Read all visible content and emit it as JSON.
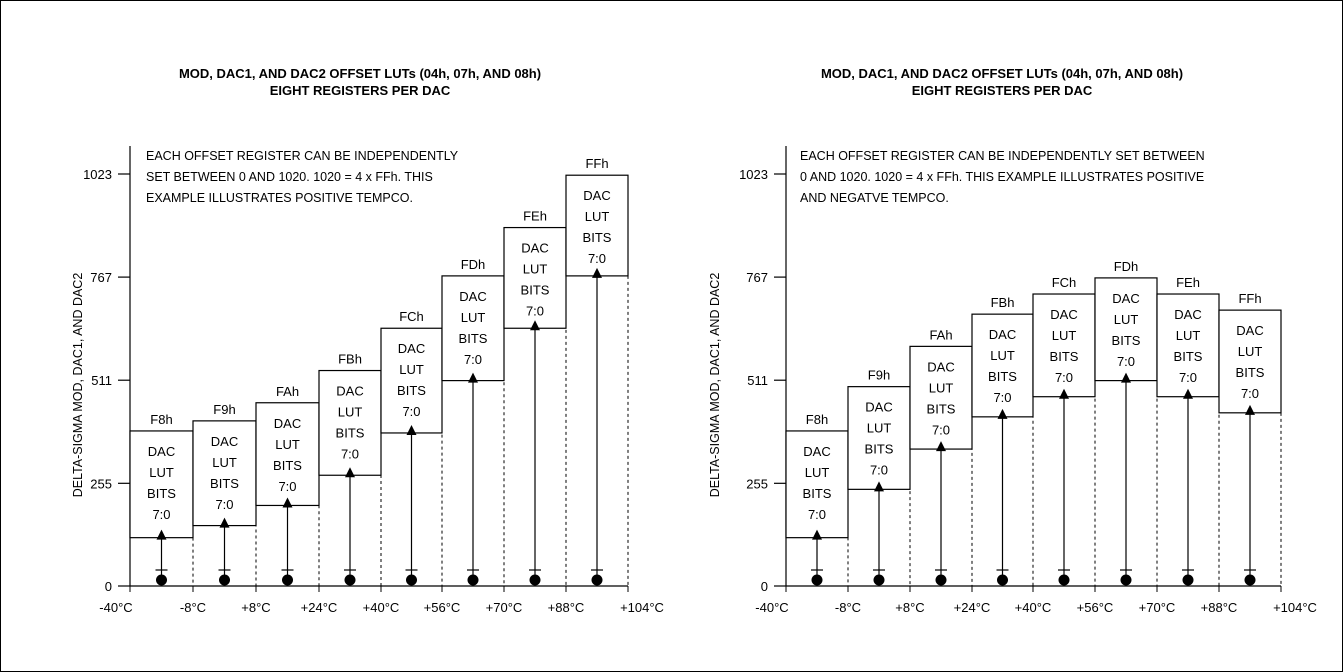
{
  "charts": [
    {
      "title_line1": "MOD, DAC1, AND DAC2 OFFSET LUTs (04h, 07h, AND 08h)",
      "title_line2": "EIGHT REGISTERS PER DAC",
      "note_lines": [
        "EACH OFFSET REGISTER CAN BE INDEPENDENTLY",
        "SET BETWEEN 0 AND 1020. 1020 = 4 x FFh. THIS",
        "EXAMPLE ILLUSTRATES POSITIVE TEMPCO."
      ]
    },
    {
      "title_line1": "MOD, DAC1, AND DAC2 OFFSET LUTs (04h, 07h, AND 08h)",
      "title_line2": "EIGHT REGISTERS PER DAC",
      "note_lines": [
        "EACH OFFSET REGISTER CAN BE INDEPENDENTLY SET BETWEEN",
        "0 AND 1020. 1020 = 4 x FFh. THIS EXAMPLE ILLUSTRATES POSITIVE",
        "AND NEGATVE TEMPCO."
      ]
    }
  ],
  "chart_data": [
    {
      "type": "bar",
      "title": "MOD, DAC1, AND DAC2 OFFSET LUTs (04h, 07h, AND 08h) EIGHT REGISTERS PER DAC",
      "ylabel": "DELTA-SIGMA MOD, DAC1, AND DAC2",
      "ylim": [
        0,
        1023
      ],
      "yticks": [
        "0",
        "255",
        "511",
        "767",
        "1023"
      ],
      "xticks": [
        "-40°C",
        "-8°C",
        "+8°C",
        "+24°C",
        "+40°C",
        "+56°C",
        "+70°C",
        "+88°C",
        "+104°C"
      ],
      "registers": [
        "F8h",
        "F9h",
        "FAh",
        "FBh",
        "FCh",
        "FDh",
        "FEh",
        "FFh"
      ],
      "box_text": [
        "DAC",
        "LUT",
        "BITS",
        "7:0"
      ],
      "box_bottom": [
        120,
        150,
        200,
        275,
        380,
        510,
        640,
        770
      ],
      "box_top": [
        385,
        410,
        455,
        535,
        640,
        770,
        890,
        1020
      ]
    },
    {
      "type": "bar",
      "title": "MOD, DAC1, AND DAC2 OFFSET LUTs (04h, 07h, AND 08h) EIGHT REGISTERS PER DAC",
      "ylabel": "DELTA-SIGMA MOD, DAC1, AND DAC2",
      "ylim": [
        0,
        1023
      ],
      "yticks": [
        "0",
        "255",
        "511",
        "767",
        "1023"
      ],
      "xticks": [
        "-40°C",
        "-8°C",
        "+8°C",
        "+24°C",
        "+40°C",
        "+56°C",
        "+70°C",
        "+88°C",
        "+104°C"
      ],
      "registers": [
        "F8h",
        "F9h",
        "FAh",
        "FBh",
        "FCh",
        "FDh",
        "FEh",
        "FFh"
      ],
      "box_text": [
        "DAC",
        "LUT",
        "BITS",
        "7:0"
      ],
      "box_bottom": [
        120,
        240,
        340,
        420,
        470,
        510,
        470,
        430
      ],
      "box_top": [
        385,
        495,
        595,
        675,
        725,
        765,
        725,
        685
      ]
    }
  ]
}
